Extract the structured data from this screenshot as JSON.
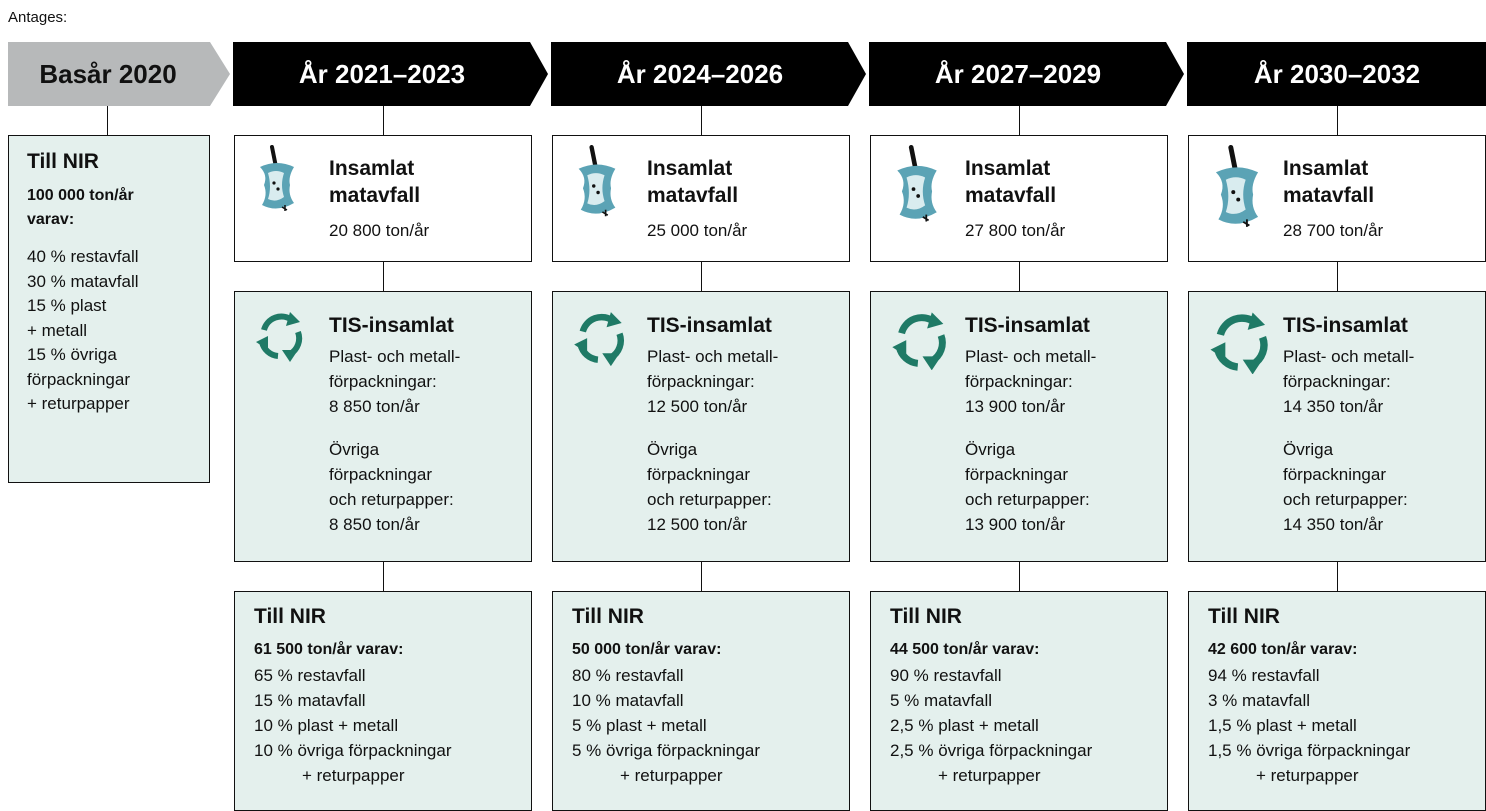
{
  "intro": "Antages:",
  "base": {
    "header": "Basår 2020",
    "title": "Till NIR",
    "total": "100 000 ton/år",
    "subtitle": "varav:",
    "lines": [
      "40 % restavfall",
      "30 % matavfall",
      "15 % plast",
      "+ metall",
      "15 % övriga",
      "förpackningar",
      "+ returpapper"
    ]
  },
  "periods": [
    {
      "header": "År 2021–2023",
      "food": {
        "title": [
          "Insamlat",
          "matavfall"
        ],
        "amount": "20 800 ton/år"
      },
      "tis": {
        "title": "TIS-insamlat",
        "plastic_label": [
          "Plast- och metall-",
          "förpackningar:"
        ],
        "plastic_amount": "8 850 ton/år",
        "other_label": [
          "Övriga",
          "förpackningar",
          "och returpapper:"
        ],
        "other_amount": "8 850 ton/år"
      },
      "nir": {
        "title": "Till NIR",
        "total": "61 500 ton/år varav:",
        "lines": [
          "65 % restavfall",
          "15 % matavfall",
          "10 % plast + metall",
          "10 % övriga förpackningar",
          "+ returpapper"
        ]
      }
    },
    {
      "header": "År 2024–2026",
      "food": {
        "title": [
          "Insamlat",
          "matavfall"
        ],
        "amount": "25 000 ton/år"
      },
      "tis": {
        "title": "TIS-insamlat",
        "plastic_label": [
          "Plast- och metall-",
          "förpackningar:"
        ],
        "plastic_amount": "12 500 ton/år",
        "other_label": [
          "Övriga",
          "förpackningar",
          "och returpapper:"
        ],
        "other_amount": "12 500 ton/år"
      },
      "nir": {
        "title": "Till NIR",
        "total": "50 000 ton/år varav:",
        "lines": [
          "80 % restavfall",
          "10 % matavfall",
          "5 % plast + metall",
          "5 % övriga förpackningar",
          "+ returpapper"
        ]
      }
    },
    {
      "header": "År 2027–2029",
      "food": {
        "title": [
          "Insamlat",
          "matavfall"
        ],
        "amount": "27 800 ton/år"
      },
      "tis": {
        "title": "TIS-insamlat",
        "plastic_label": [
          "Plast- och metall-",
          "förpackningar:"
        ],
        "plastic_amount": "13 900 ton/år",
        "other_label": [
          "Övriga",
          "förpackningar",
          "och returpapper:"
        ],
        "other_amount": "13 900 ton/år"
      },
      "nir": {
        "title": "Till NIR",
        "total": "44 500 ton/år varav:",
        "lines": [
          "90 % restavfall",
          "5 % matavfall",
          "2,5 % plast + metall",
          "2,5 % övriga förpackningar",
          "+ returpapper"
        ]
      }
    },
    {
      "header": "År 2030–2032",
      "food": {
        "title": [
          "Insamlat",
          "matavfall"
        ],
        "amount": "28 700 ton/år"
      },
      "tis": {
        "title": "TIS-insamlat",
        "plastic_label": [
          "Plast- och metall-",
          "förpackningar:"
        ],
        "plastic_amount": "14 350 ton/år",
        "other_label": [
          "Övriga",
          "förpackningar",
          "och returpapper:"
        ],
        "other_amount": "14 350 ton/år"
      },
      "nir": {
        "title": "Till NIR",
        "total": "42 600 ton/år varav:",
        "lines": [
          "94 % restavfall",
          "3 % matavfall",
          "1,5 % plast + metall",
          "1,5 % övriga förpackningar",
          "+ returpapper"
        ]
      }
    }
  ]
}
